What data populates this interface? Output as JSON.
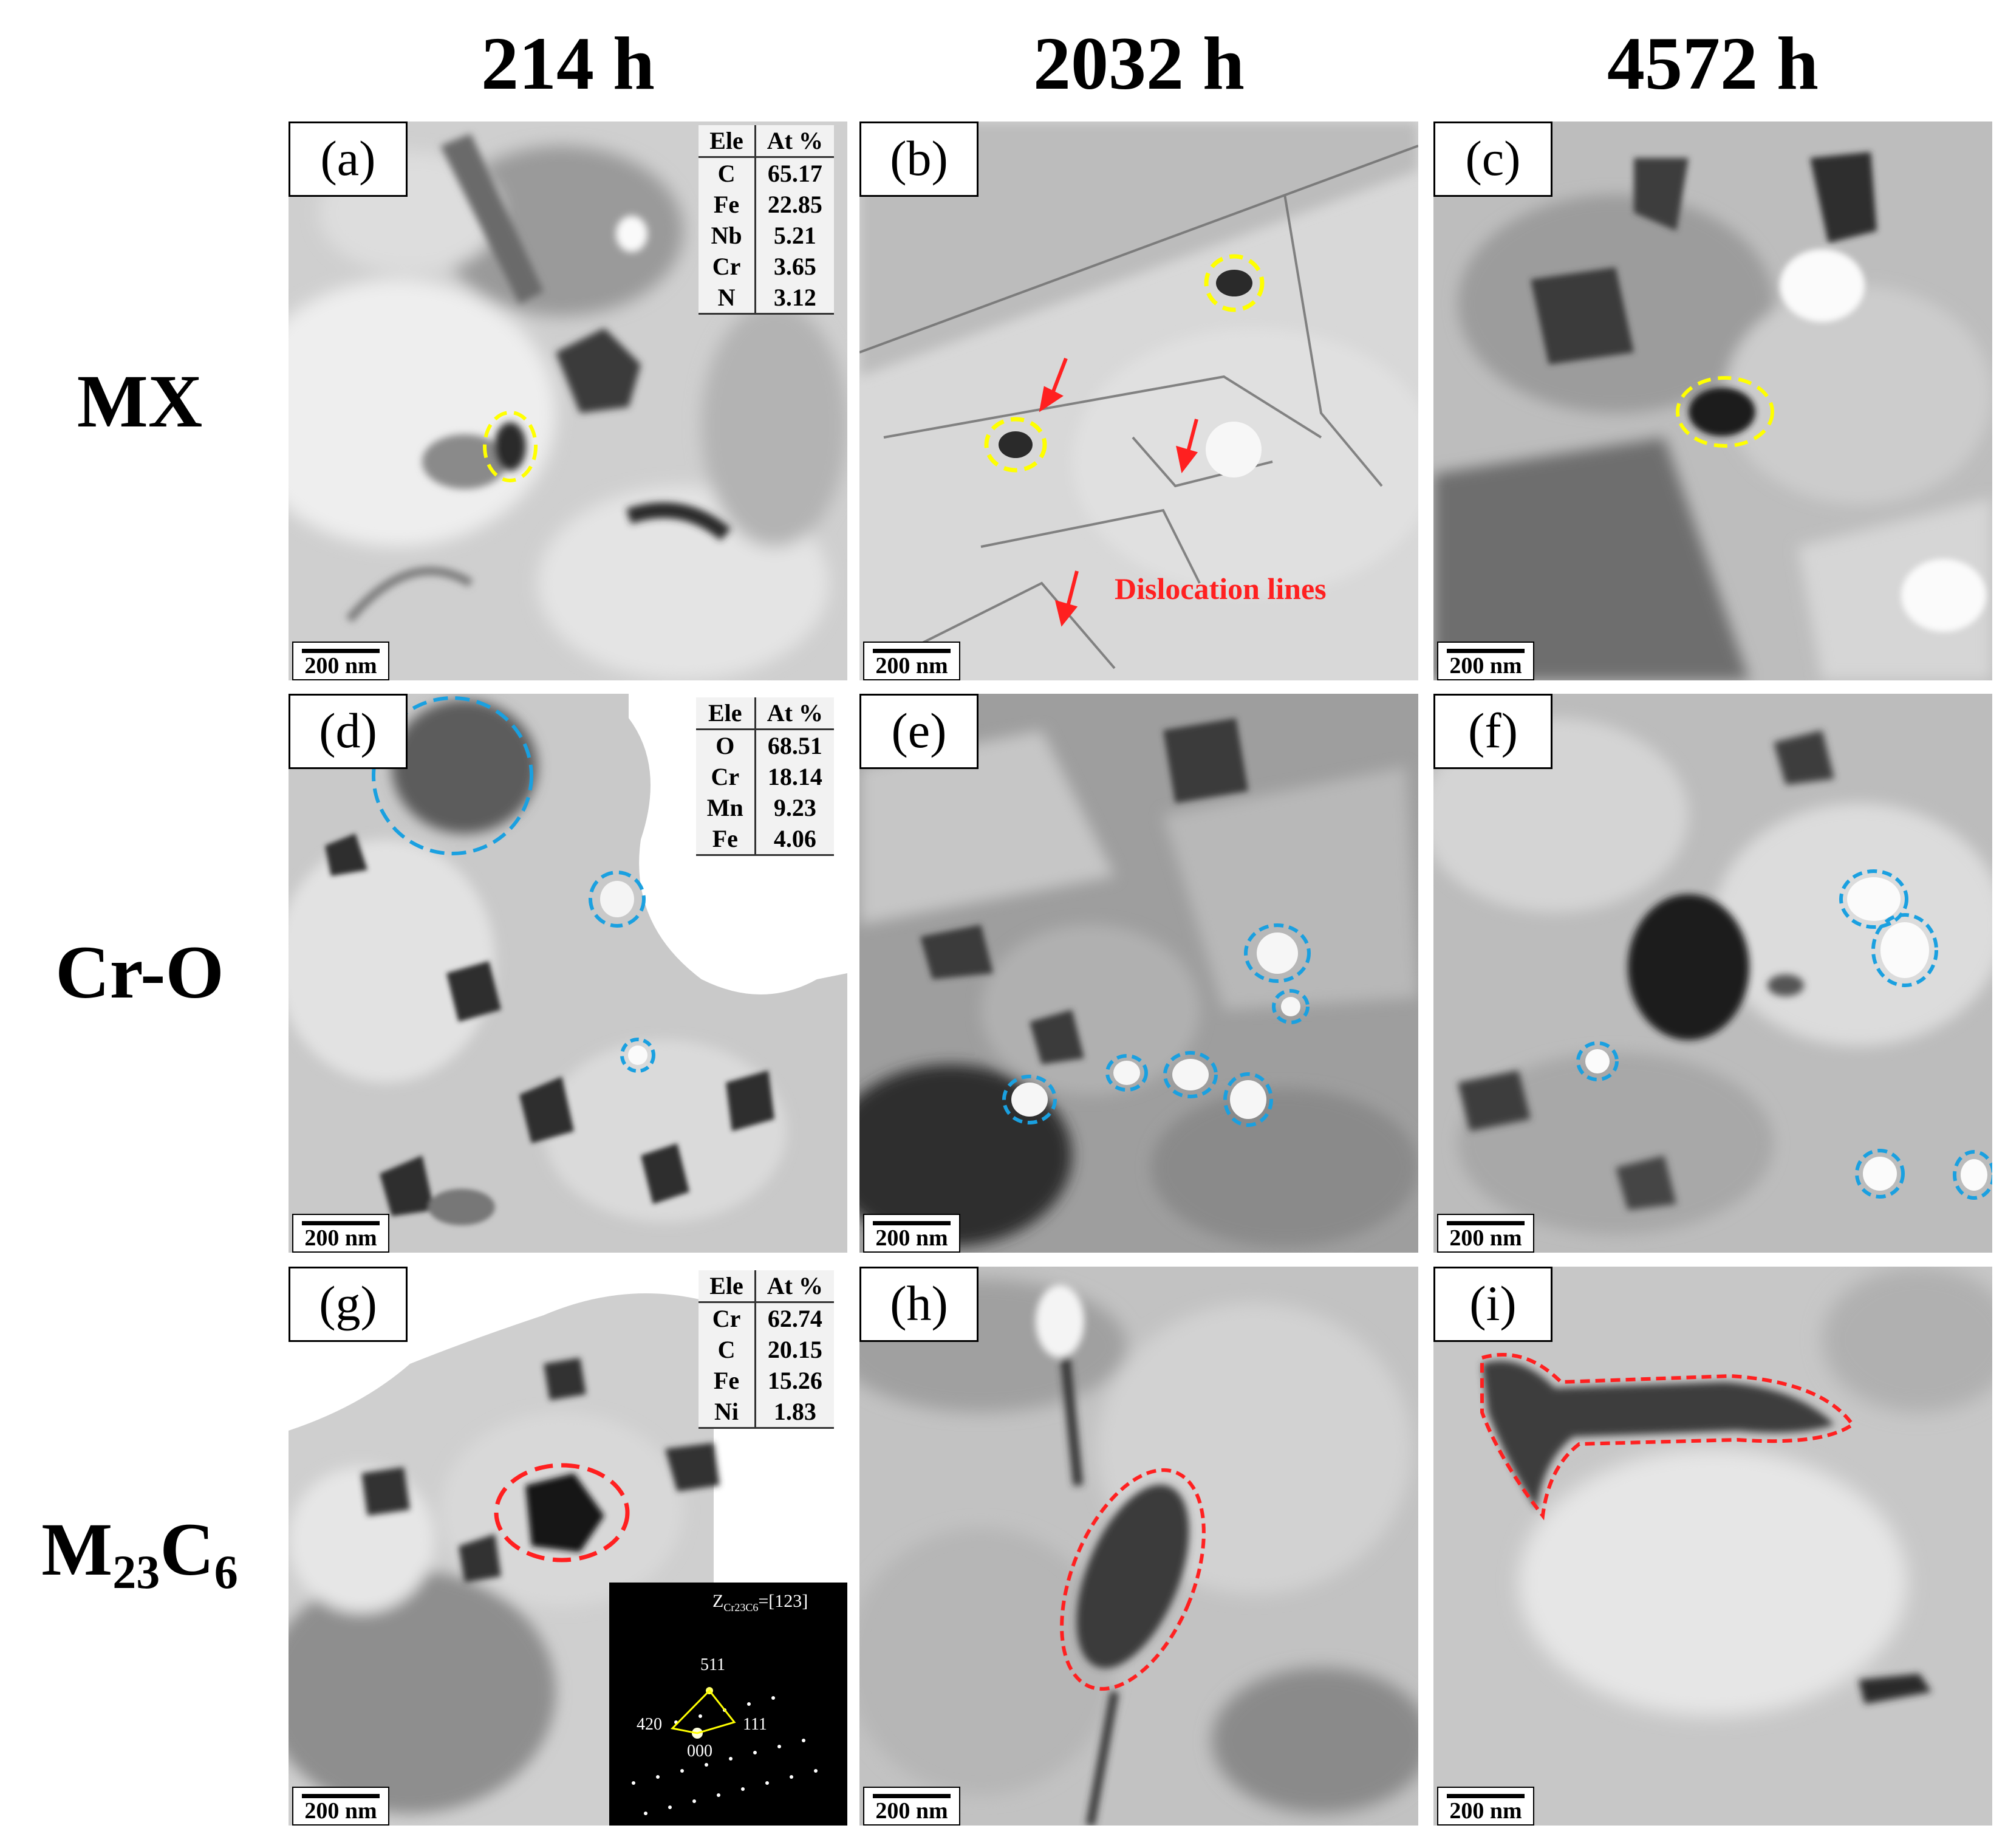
{
  "columns": [
    "214 h",
    "2032 h",
    "4572 h"
  ],
  "rows": [
    {
      "label_main": "MX",
      "label_sub": "",
      "label_tail": ""
    },
    {
      "label_main": "Cr-O",
      "label_sub": "",
      "label_tail": ""
    },
    {
      "label_main": "M",
      "label_sub": "23",
      "label_tail": "C",
      "label_sub2": "6"
    }
  ],
  "panels": {
    "a": "(a)",
    "b": "(b)",
    "c": "(c)",
    "d": "(d)",
    "e": "(e)",
    "f": "(f)",
    "g": "(g)",
    "h": "(h)",
    "i": "(i)"
  },
  "scale_bar": "200 nm",
  "tables": {
    "a": {
      "header": [
        "Ele",
        "At %"
      ],
      "rows": [
        [
          "C",
          "65.17"
        ],
        [
          "Fe",
          "22.85"
        ],
        [
          "Nb",
          "5.21"
        ],
        [
          "Cr",
          "3.65"
        ],
        [
          "N",
          "3.12"
        ]
      ]
    },
    "d": {
      "header": [
        "Ele",
        "At %"
      ],
      "rows": [
        [
          "O",
          "68.51"
        ],
        [
          "Cr",
          "18.14"
        ],
        [
          "Mn",
          "9.23"
        ],
        [
          "Fe",
          "4.06"
        ]
      ]
    },
    "g": {
      "header": [
        "Ele",
        "At %"
      ],
      "rows": [
        [
          "Cr",
          "62.74"
        ],
        [
          "C",
          "20.15"
        ],
        [
          "Fe",
          "15.26"
        ],
        [
          "Ni",
          "1.83"
        ]
      ]
    }
  },
  "annotation_b": "Dislocation lines",
  "saed": {
    "zone_prefix": "Z",
    "zone_sub": "Cr23C6",
    "zone_value": "=[123]",
    "spot_labels": [
      "511",
      "420",
      "111",
      "000"
    ]
  },
  "colors": {
    "mx_marker": "#ffff00",
    "cro_marker": "#1aa0e0",
    "m23c6_marker": "#ff2020",
    "arrow": "#ff2020"
  }
}
